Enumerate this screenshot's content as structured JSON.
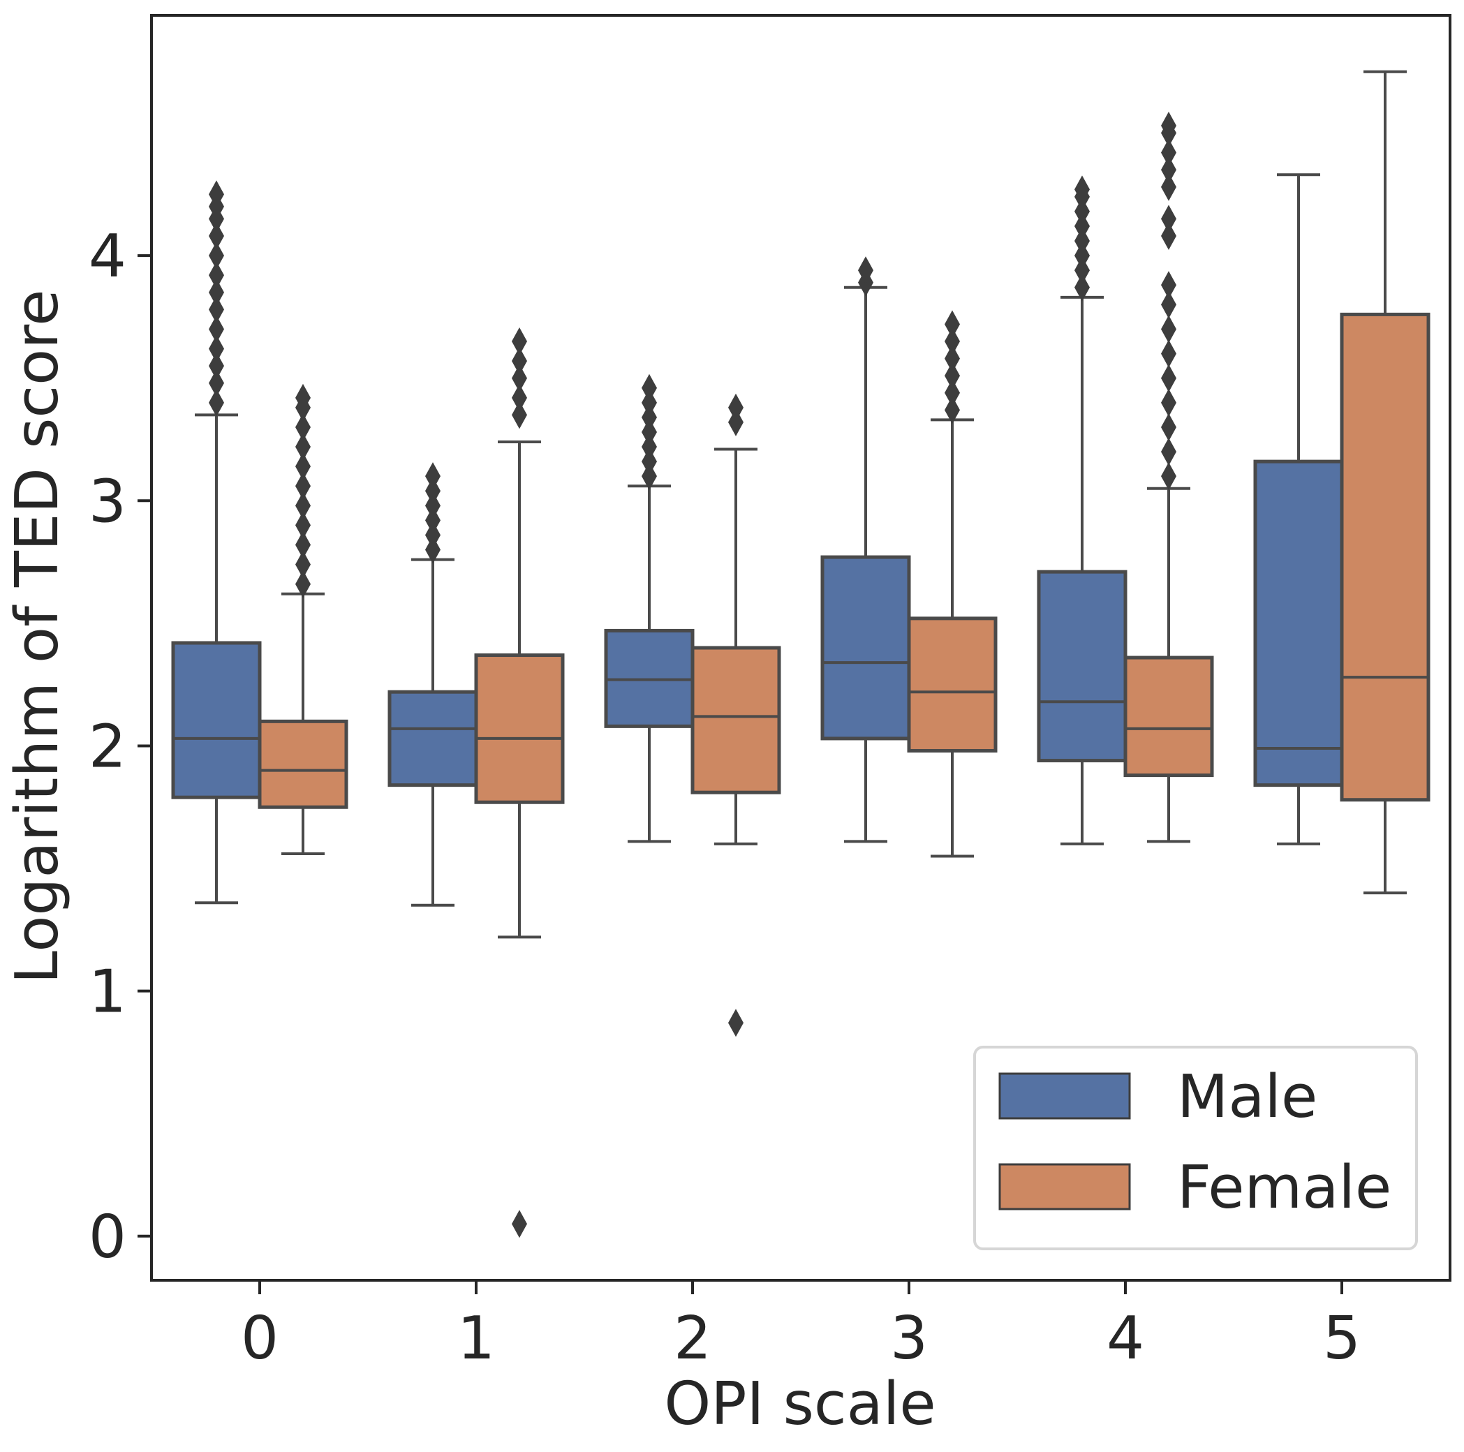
{
  "chart_data": {
    "type": "boxplot",
    "xlabel": "OPI scale",
    "ylabel": "Logarithm of TED score",
    "categories": [
      "0",
      "1",
      "2",
      "3",
      "4",
      "5"
    ],
    "ylim": [
      -0.18,
      4.98
    ],
    "yticks": [
      0,
      1,
      2,
      3,
      4
    ],
    "legend": {
      "position": "lower-right"
    },
    "series": [
      {
        "name": "Male",
        "color": "#5572a3",
        "boxes": [
          {
            "q1": 1.79,
            "median": 2.03,
            "q3": 2.42,
            "whisker_low": 1.36,
            "whisker_high": 3.35,
            "outliers": [
              3.4,
              3.48,
              3.55,
              3.62,
              3.7,
              3.78,
              3.85,
              3.92,
              4.0,
              4.08,
              4.15,
              4.2,
              4.25
            ]
          },
          {
            "q1": 1.84,
            "median": 2.07,
            "q3": 2.22,
            "whisker_low": 1.35,
            "whisker_high": 2.76,
            "outliers": [
              2.8,
              2.86,
              2.92,
              2.98,
              3.04,
              3.1
            ]
          },
          {
            "q1": 2.08,
            "median": 2.27,
            "q3": 2.47,
            "whisker_low": 1.61,
            "whisker_high": 3.06,
            "outliers": [
              3.1,
              3.16,
              3.22,
              3.28,
              3.34,
              3.4,
              3.46
            ]
          },
          {
            "q1": 2.03,
            "median": 2.34,
            "q3": 2.77,
            "whisker_low": 1.61,
            "whisker_high": 3.87,
            "outliers": [
              3.89,
              3.94
            ]
          },
          {
            "q1": 1.94,
            "median": 2.18,
            "q3": 2.71,
            "whisker_low": 1.6,
            "whisker_high": 3.83,
            "outliers": [
              3.87,
              3.94,
              4.0,
              4.06,
              4.12,
              4.18,
              4.24,
              4.27
            ]
          },
          {
            "q1": 1.84,
            "median": 1.99,
            "q3": 3.16,
            "whisker_low": 1.6,
            "whisker_high": 4.33,
            "outliers": []
          }
        ]
      },
      {
        "name": "Female",
        "color": "#cd8862",
        "boxes": [
          {
            "q1": 1.75,
            "median": 1.9,
            "q3": 2.1,
            "whisker_low": 1.56,
            "whisker_high": 2.62,
            "outliers": [
              2.66,
              2.74,
              2.82,
              2.9,
              2.98,
              3.06,
              3.14,
              3.22,
              3.3,
              3.38,
              3.42
            ]
          },
          {
            "q1": 1.77,
            "median": 2.03,
            "q3": 2.37,
            "whisker_low": 1.22,
            "whisker_high": 3.24,
            "outliers": [
              0.05,
              3.35,
              3.42,
              3.5,
              3.57,
              3.65
            ]
          },
          {
            "q1": 1.81,
            "median": 2.12,
            "q3": 2.4,
            "whisker_low": 1.6,
            "whisker_high": 3.21,
            "outliers": [
              0.87,
              3.32,
              3.38
            ]
          },
          {
            "q1": 1.98,
            "median": 2.22,
            "q3": 2.52,
            "whisker_low": 1.55,
            "whisker_high": 3.33,
            "outliers": [
              3.37,
              3.44,
              3.51,
              3.58,
              3.65,
              3.72
            ]
          },
          {
            "q1": 1.88,
            "median": 2.07,
            "q3": 2.36,
            "whisker_low": 1.61,
            "whisker_high": 3.05,
            "outliers": [
              3.1,
              3.2,
              3.3,
              3.4,
              3.5,
              3.6,
              3.7,
              3.8,
              3.88,
              4.08,
              4.15,
              4.28,
              4.35,
              4.42,
              4.5,
              4.53
            ]
          },
          {
            "q1": 1.78,
            "median": 2.28,
            "q3": 3.76,
            "whisker_low": 1.4,
            "whisker_high": 4.75,
            "outliers": []
          }
        ]
      }
    ]
  }
}
